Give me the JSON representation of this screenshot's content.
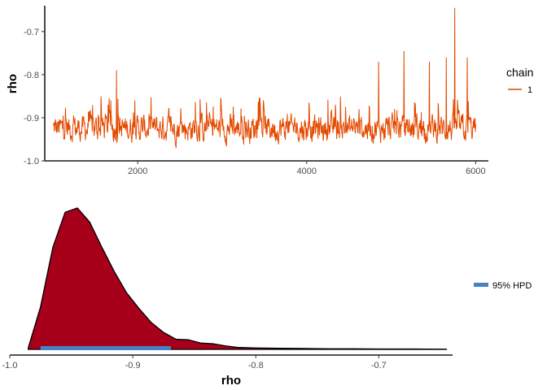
{
  "chart_data": [
    {
      "type": "line",
      "title": "",
      "xlabel": "",
      "ylabel": "rho",
      "xlim": [
        900,
        6150
      ],
      "ylim": [
        -1.0,
        -0.64
      ],
      "x_ticks": [
        2000,
        4000,
        6000
      ],
      "x_tick_labels": [
        "2000",
        "4000",
        "6000"
      ],
      "y_ticks": [
        -1.0,
        -0.9,
        -0.8,
        -0.7
      ],
      "y_tick_labels": [
        "-1.0",
        "-0.9",
        "-0.8",
        "-0.7"
      ],
      "grid": false,
      "legend": {
        "title": "chain",
        "position": "right",
        "entries": [
          "1"
        ]
      },
      "colors": {
        "series": "#e34a00"
      },
      "series": [
        {
          "name": "1",
          "x_start": 1001,
          "x_end": 6000,
          "typical_range": [
            -0.97,
            -0.88
          ],
          "peaks": [
            {
              "x": 1750,
              "y": -0.79
            },
            {
              "x": 4850,
              "y": -0.77
            },
            {
              "x": 5150,
              "y": -0.745
            },
            {
              "x": 5450,
              "y": -0.77
            },
            {
              "x": 5650,
              "y": -0.76
            },
            {
              "x": 5750,
              "y": -0.645
            },
            {
              "x": 5900,
              "y": -0.76
            }
          ]
        }
      ]
    },
    {
      "type": "area",
      "title": "",
      "xlabel": "rho",
      "ylabel": "",
      "xlim": [
        -1.0,
        -0.64
      ],
      "x_ticks": [
        -1.0,
        -0.9,
        -0.8,
        -0.7
      ],
      "x_tick_labels": [
        "-1.0",
        "-0.9",
        "-0.8",
        "-0.7"
      ],
      "grid": false,
      "colors": {
        "density_fill": "#a6001a",
        "hpd": "#4682c4"
      },
      "density": {
        "x": [
          -0.985,
          -0.975,
          -0.965,
          -0.955,
          -0.945,
          -0.935,
          -0.925,
          -0.915,
          -0.905,
          -0.895,
          -0.885,
          -0.875,
          -0.865,
          -0.855,
          -0.845,
          -0.835,
          -0.825,
          -0.815,
          -0.8,
          -0.78,
          -0.76,
          -0.74,
          -0.72,
          -0.7,
          -0.68,
          -0.66,
          -0.645
        ],
        "y": [
          0.01,
          0.3,
          0.72,
          0.97,
          1.0,
          0.9,
          0.72,
          0.55,
          0.4,
          0.29,
          0.19,
          0.12,
          0.072,
          0.068,
          0.045,
          0.04,
          0.025,
          0.014,
          0.01,
          0.008,
          0.006,
          0.004,
          0.004,
          0.003,
          0.003,
          0.002,
          0.001
        ]
      },
      "hpd": {
        "label": "95% HPD",
        "lower": -0.975,
        "upper": -0.869
      },
      "legend": {
        "position": "right",
        "entries": [
          "95% HPD"
        ]
      }
    }
  ]
}
